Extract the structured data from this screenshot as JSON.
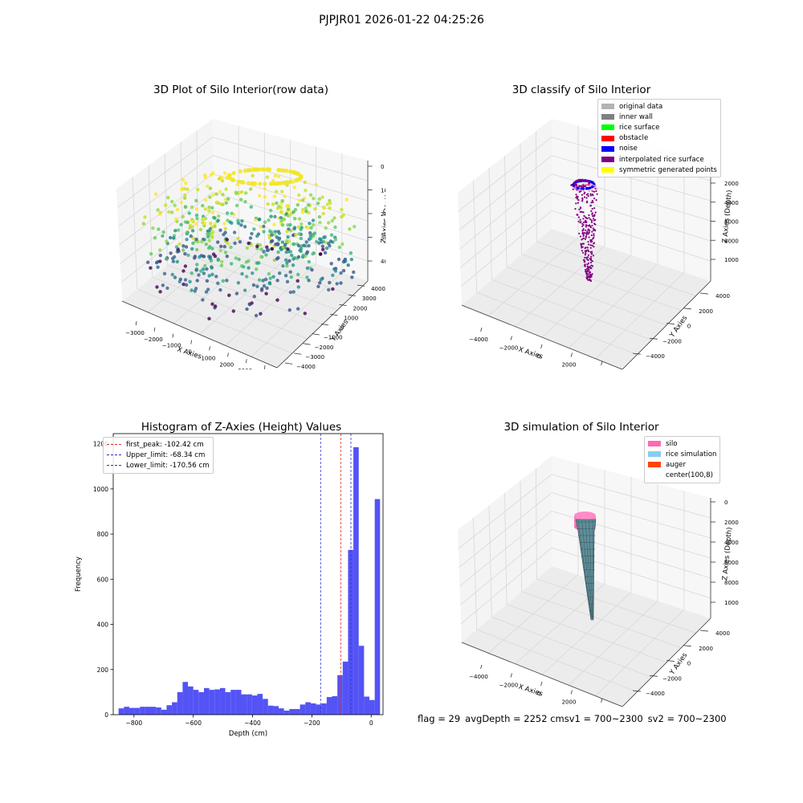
{
  "suptitle": "PJPJR01 2026-01-22 04:25:26",
  "footer": {
    "flag": "flag = 29",
    "avg_depth": "avgDepth = 2252 cmsv1 = 700~2300",
    "sv2": "sv2 = 700~2300"
  },
  "colors": {
    "hist_bar": "#4a4af5",
    "first_peak_line": "#e03030",
    "limit_line": "#2a2ad0",
    "pane": "#f2f2f2",
    "grid": "#d8d8d8"
  },
  "chart_data": [
    {
      "id": "raw",
      "type": "scatter3d",
      "title": "3D Plot of Silo Interior(row data)",
      "xlabel": "X Axies",
      "ylabel": "Y Axies",
      "zlabel": "Z Axies (Depth)",
      "xticks": [
        "−3000",
        "−2000",
        "−1000",
        "0",
        "1000",
        "2000",
        "3000",
        "4000"
      ],
      "yticks": [
        "−4000",
        "−3000",
        "−2000",
        "−1000",
        "0",
        "1000",
        "2000",
        "3000",
        "4000"
      ],
      "zticks": [
        "4000",
        "3000",
        "2000",
        "1000",
        "0"
      ],
      "colormap": "viridis"
    },
    {
      "id": "classify",
      "type": "scatter3d",
      "title": "3D classify of Silo Interior",
      "xlabel": "X Axies",
      "ylabel": "Y Axies",
      "zlabel": "Z Axies (Depth)",
      "xticks": [
        "−4000",
        "−2000",
        "0",
        "2000",
        "4000"
      ],
      "yticks": [
        "−4000",
        "−2000",
        "0",
        "2000",
        "4000"
      ],
      "zticks": [
        "10000",
        "8000",
        "6000",
        "4000",
        "2000"
      ],
      "legend": [
        {
          "label": "original data",
          "color": "#b3b3b3"
        },
        {
          "label": "inner wall",
          "color": "#808080"
        },
        {
          "label": "rice surface",
          "color": "#00ff00"
        },
        {
          "label": "obstacle",
          "color": "#ff0000"
        },
        {
          "label": "noise",
          "color": "#0000ff"
        },
        {
          "label": "interpolated rice surface",
          "color": "#800080"
        },
        {
          "label": "symmetric generated points",
          "color": "#ffff00"
        }
      ]
    },
    {
      "id": "histogram",
      "type": "bar",
      "title": "Histogram of Z-Axies (Height) Values",
      "xlabel": "Depth (cm)",
      "ylabel": "Frequency",
      "xlim": [
        -870,
        40
      ],
      "ylim": [
        0,
        1245
      ],
      "xticks": [
        -800,
        -600,
        -400,
        -200,
        0
      ],
      "yticks": [
        0,
        200,
        400,
        600,
        800,
        1000,
        1200
      ],
      "bin_start": -852,
      "bin_width": 18,
      "counts": [
        28,
        35,
        30,
        30,
        35,
        35,
        35,
        32,
        22,
        42,
        55,
        100,
        145,
        125,
        110,
        100,
        118,
        110,
        112,
        118,
        100,
        110,
        110,
        90,
        90,
        85,
        92,
        70,
        40,
        38,
        28,
        18,
        25,
        25,
        45,
        55,
        50,
        45,
        50,
        78,
        82,
        175,
        235,
        730,
        1185,
        305,
        80,
        65,
        955
      ],
      "vlines": [
        {
          "label": "first_peak: -102.42 cm",
          "x": -102.42,
          "color": "#e03030"
        },
        {
          "label": "Upper_limit: -68.34 cm",
          "x": -68.34,
          "color": "#2a2ad0"
        },
        {
          "label": "Lower_limit: -170.56 cm",
          "x": -170.56,
          "color": "#2a2ad0"
        }
      ]
    },
    {
      "id": "simulation",
      "type": "surface3d",
      "title": "3D simulation of Silo Interior",
      "xlabel": "X Axies",
      "ylabel": "Y Axies",
      "zlabel": "Z Axies (Depth)",
      "xticks": [
        "−4000",
        "−2000",
        "0",
        "2000",
        "4000"
      ],
      "yticks": [
        "−4000",
        "−2000",
        "0",
        "2000",
        "4000"
      ],
      "zticks": [
        "10000",
        "8000",
        "6000",
        "4000",
        "2000",
        "0"
      ],
      "legend": [
        {
          "label": "silo",
          "color": "#ff69b4"
        },
        {
          "label": "rice simulation",
          "color": "#87ceeb"
        },
        {
          "label": "auger",
          "color": "#ff4500"
        },
        {
          "label": "center(100,8)",
          "color": "none"
        }
      ]
    }
  ]
}
